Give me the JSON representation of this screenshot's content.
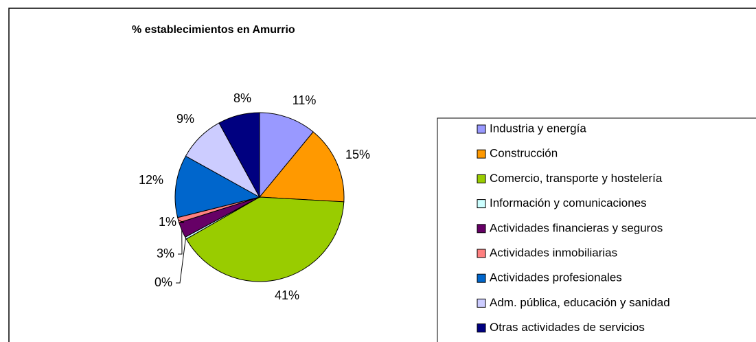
{
  "chart_data": {
    "type": "pie",
    "title": "% establecimientos en Amurrio",
    "categories": [
      "Industria y energía",
      "Construcción",
      "Comercio, transporte y hostelería",
      "Información y comunicaciones",
      "Actividades financieras y seguros",
      "Actividades inmobiliarias",
      "Actividades profesionales",
      "Adm. pública, educación y sanidad",
      "Otras actividades de servicios"
    ],
    "values": [
      11,
      15,
      41,
      0.4,
      3,
      1,
      12,
      9,
      8
    ],
    "value_labels": [
      "11%",
      "15%",
      "41%",
      "0%",
      "3%",
      "1%",
      "12%",
      "9%",
      "8%"
    ],
    "colors": [
      "#9999ff",
      "#ff9900",
      "#99cc00",
      "#ccffff",
      "#660066",
      "#ff8080",
      "#0066cc",
      "#ccccff",
      "#000080"
    ],
    "legend": "right"
  }
}
